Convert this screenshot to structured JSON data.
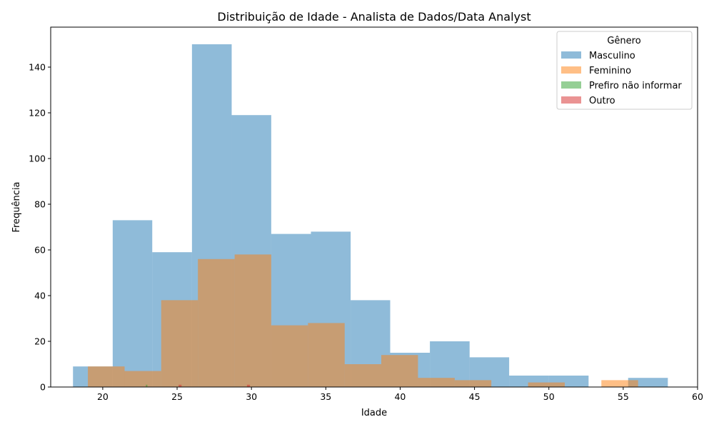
{
  "chart_data": {
    "type": "histogram",
    "title": "Distribuição de Idade - Analista de Dados/Data Analyst",
    "xlabel": "Idade",
    "ylabel": "Frequência",
    "xlim": [
      16.5,
      60
    ],
    "ylim": [
      0,
      157.5
    ],
    "x_ticks": [
      20,
      25,
      30,
      35,
      40,
      45,
      50,
      55,
      60
    ],
    "y_ticks": [
      0,
      20,
      40,
      60,
      80,
      100,
      120,
      140
    ],
    "grid": false,
    "legend": {
      "title": "Gênero",
      "placement": "top-right"
    },
    "series": [
      {
        "name": "Masculino",
        "color": "#1f77b4",
        "bins": [
          {
            "x0": 18.0,
            "x1": 20.67,
            "count": 9
          },
          {
            "x0": 20.67,
            "x1": 23.33,
            "count": 73
          },
          {
            "x0": 23.33,
            "x1": 26.0,
            "count": 59
          },
          {
            "x0": 26.0,
            "x1": 28.67,
            "count": 150
          },
          {
            "x0": 28.67,
            "x1": 31.33,
            "count": 119
          },
          {
            "x0": 31.33,
            "x1": 34.0,
            "count": 67
          },
          {
            "x0": 34.0,
            "x1": 36.67,
            "count": 68
          },
          {
            "x0": 36.67,
            "x1": 39.33,
            "count": 38
          },
          {
            "x0": 39.33,
            "x1": 42.0,
            "count": 15
          },
          {
            "x0": 42.0,
            "x1": 44.67,
            "count": 20
          },
          {
            "x0": 44.67,
            "x1": 47.33,
            "count": 13
          },
          {
            "x0": 47.33,
            "x1": 50.0,
            "count": 5
          },
          {
            "x0": 50.0,
            "x1": 52.67,
            "count": 5
          },
          {
            "x0": 52.67,
            "x1": 55.33,
            "count": 0
          },
          {
            "x0": 55.33,
            "x1": 58.0,
            "count": 4
          }
        ]
      },
      {
        "name": "Feminino",
        "color": "#ff7f0e",
        "bins": [
          {
            "x0": 19.0,
            "x1": 21.47,
            "count": 9
          },
          {
            "x0": 21.47,
            "x1": 23.93,
            "count": 7
          },
          {
            "x0": 23.93,
            "x1": 26.4,
            "count": 38
          },
          {
            "x0": 26.4,
            "x1": 28.87,
            "count": 56
          },
          {
            "x0": 28.87,
            "x1": 31.33,
            "count": 58
          },
          {
            "x0": 31.33,
            "x1": 33.8,
            "count": 27
          },
          {
            "x0": 33.8,
            "x1": 36.27,
            "count": 28
          },
          {
            "x0": 36.27,
            "x1": 38.73,
            "count": 10
          },
          {
            "x0": 38.73,
            "x1": 41.2,
            "count": 14
          },
          {
            "x0": 41.2,
            "x1": 43.67,
            "count": 4
          },
          {
            "x0": 43.67,
            "x1": 46.13,
            "count": 3
          },
          {
            "x0": 46.13,
            "x1": 48.6,
            "count": 0
          },
          {
            "x0": 48.6,
            "x1": 51.07,
            "count": 2
          },
          {
            "x0": 51.07,
            "x1": 53.53,
            "count": 0
          },
          {
            "x0": 53.53,
            "x1": 56.0,
            "count": 3
          }
        ]
      },
      {
        "name": "Prefiro não informar",
        "color": "#2ca02c",
        "bins": [
          {
            "x0": 22.9,
            "x1": 23.0,
            "count": 1
          }
        ]
      },
      {
        "name": "Outro",
        "color": "#d62728",
        "bins": [
          {
            "x0": 25.1,
            "x1": 25.3,
            "count": 1
          },
          {
            "x0": 29.7,
            "x1": 29.9,
            "count": 1
          }
        ]
      }
    ]
  }
}
